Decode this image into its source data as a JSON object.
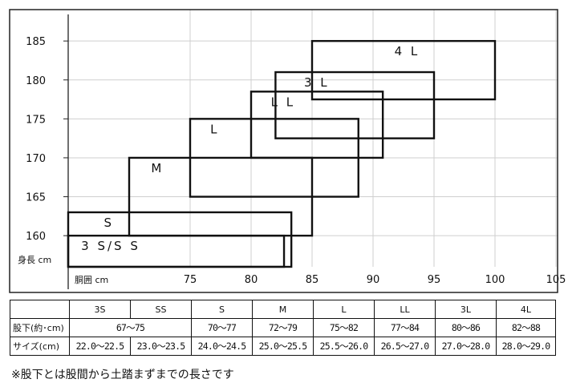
{
  "chart_data": {
    "type": "box-region",
    "xlabel": "胴囲 cm",
    "ylabel": "身長 cm",
    "xlim": [
      65,
      105
    ],
    "ylim": [
      156,
      188
    ],
    "x_ticks": [
      "75",
      "80",
      "85",
      "90",
      "95",
      "100",
      "105"
    ],
    "x_tick_values": [
      75,
      80,
      85,
      90,
      95,
      100,
      105
    ],
    "y_ticks": [
      "160",
      "165",
      "170",
      "175",
      "180",
      "185"
    ],
    "y_tick_values": [
      160,
      165,
      170,
      175,
      180,
      185
    ],
    "grid": true,
    "regions": [
      {
        "label": "4L",
        "text": "4 L",
        "x": [
          85,
          100
        ],
        "y": [
          177.5,
          185
        ]
      },
      {
        "label": "3L",
        "text": "3 L",
        "x": [
          82,
          95
        ],
        "y": [
          172.5,
          181
        ]
      },
      {
        "label": "LL",
        "text": "L L",
        "x": [
          80,
          90.8
        ],
        "y": [
          170,
          178.5
        ]
      },
      {
        "label": "L",
        "text": "L",
        "x": [
          75,
          88.8
        ],
        "y": [
          165,
          175
        ]
      },
      {
        "label": "M",
        "text": "M",
        "x": [
          70,
          85
        ],
        "y": [
          160,
          170
        ]
      },
      {
        "label": "S",
        "text": "S",
        "x": [
          65,
          83.3
        ],
        "y": [
          155,
          163
        ]
      },
      {
        "label": "3S/SS",
        "text": "3 S/S S",
        "x": [
          65,
          82.7
        ],
        "y": [
          155,
          160
        ]
      }
    ]
  },
  "table": {
    "headers": [
      "3S",
      "SS",
      "S",
      "M",
      "L",
      "LL",
      "3L",
      "4L"
    ],
    "rows": [
      {
        "label": "股下(約･cm)",
        "cells": [
          {
            "text": "67〜75",
            "span": 2
          },
          {
            "text": "70〜77",
            "span": 1
          },
          {
            "text": "72〜79",
            "span": 1
          },
          {
            "text": "75〜82",
            "span": 1
          },
          {
            "text": "77〜84",
            "span": 1
          },
          {
            "text": "80〜86",
            "span": 1
          },
          {
            "text": "82〜88",
            "span": 1
          }
        ]
      },
      {
        "label": "サイズ(cm)",
        "cells": [
          {
            "text": "22.0〜22.5",
            "span": 1
          },
          {
            "text": "23.0〜23.5",
            "span": 1
          },
          {
            "text": "24.0〜24.5",
            "span": 1
          },
          {
            "text": "25.0〜25.5",
            "span": 1
          },
          {
            "text": "25.5〜26.0",
            "span": 1
          },
          {
            "text": "26.5〜27.0",
            "span": 1
          },
          {
            "text": "27.0〜28.0",
            "span": 1
          },
          {
            "text": "28.0〜29.0",
            "span": 1
          }
        ]
      }
    ]
  },
  "footnote": "※股下とは股間から土踏まずまでの長さです"
}
